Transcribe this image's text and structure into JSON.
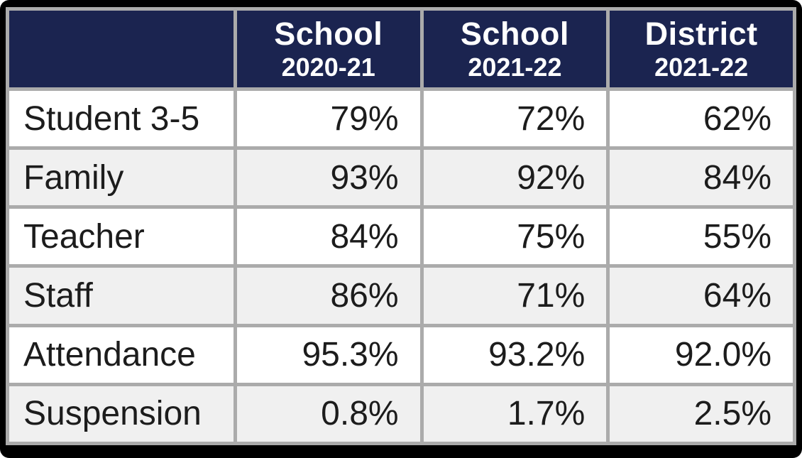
{
  "table": {
    "corner_label": "",
    "columns": [
      {
        "title": "School",
        "subtitle": "2020-21"
      },
      {
        "title": "School",
        "subtitle": "2021-22"
      },
      {
        "title": "District",
        "subtitle": "2021-22"
      }
    ],
    "rows": [
      {
        "label": "Student 3-5",
        "values": [
          "79%",
          "72%",
          "62%"
        ]
      },
      {
        "label": "Family",
        "values": [
          "93%",
          "92%",
          "84%"
        ]
      },
      {
        "label": "Teacher",
        "values": [
          "84%",
          "75%",
          "55%"
        ]
      },
      {
        "label": "Staff",
        "values": [
          "86%",
          "71%",
          "64%"
        ]
      },
      {
        "label": "Attendance",
        "values": [
          "95.3%",
          "93.2%",
          "92.0%"
        ]
      },
      {
        "label": "Suspension",
        "values": [
          "0.8%",
          "1.7%",
          "2.5%"
        ]
      }
    ]
  },
  "colors": {
    "header_background": "#1b2450",
    "header_text": "#ffffff",
    "grid_line": "#ababab",
    "row_white": "#ffffff",
    "row_alt": "#f0f0f0",
    "body_text": "#1c1c1c",
    "frame": "#000000"
  },
  "chart_data": {
    "type": "table",
    "title": "",
    "categories": [
      "Student 3-5",
      "Family",
      "Teacher",
      "Staff",
      "Attendance",
      "Suspension"
    ],
    "series": [
      {
        "name": "School 2020-21",
        "values": [
          79,
          93,
          84,
          86,
          95.3,
          0.8
        ]
      },
      {
        "name": "School 2021-22",
        "values": [
          72,
          92,
          75,
          71,
          93.2,
          1.7
        ]
      },
      {
        "name": "District 2021-22",
        "values": [
          62,
          84,
          55,
          64,
          92.0,
          2.5
        ]
      }
    ],
    "value_unit": "%"
  }
}
